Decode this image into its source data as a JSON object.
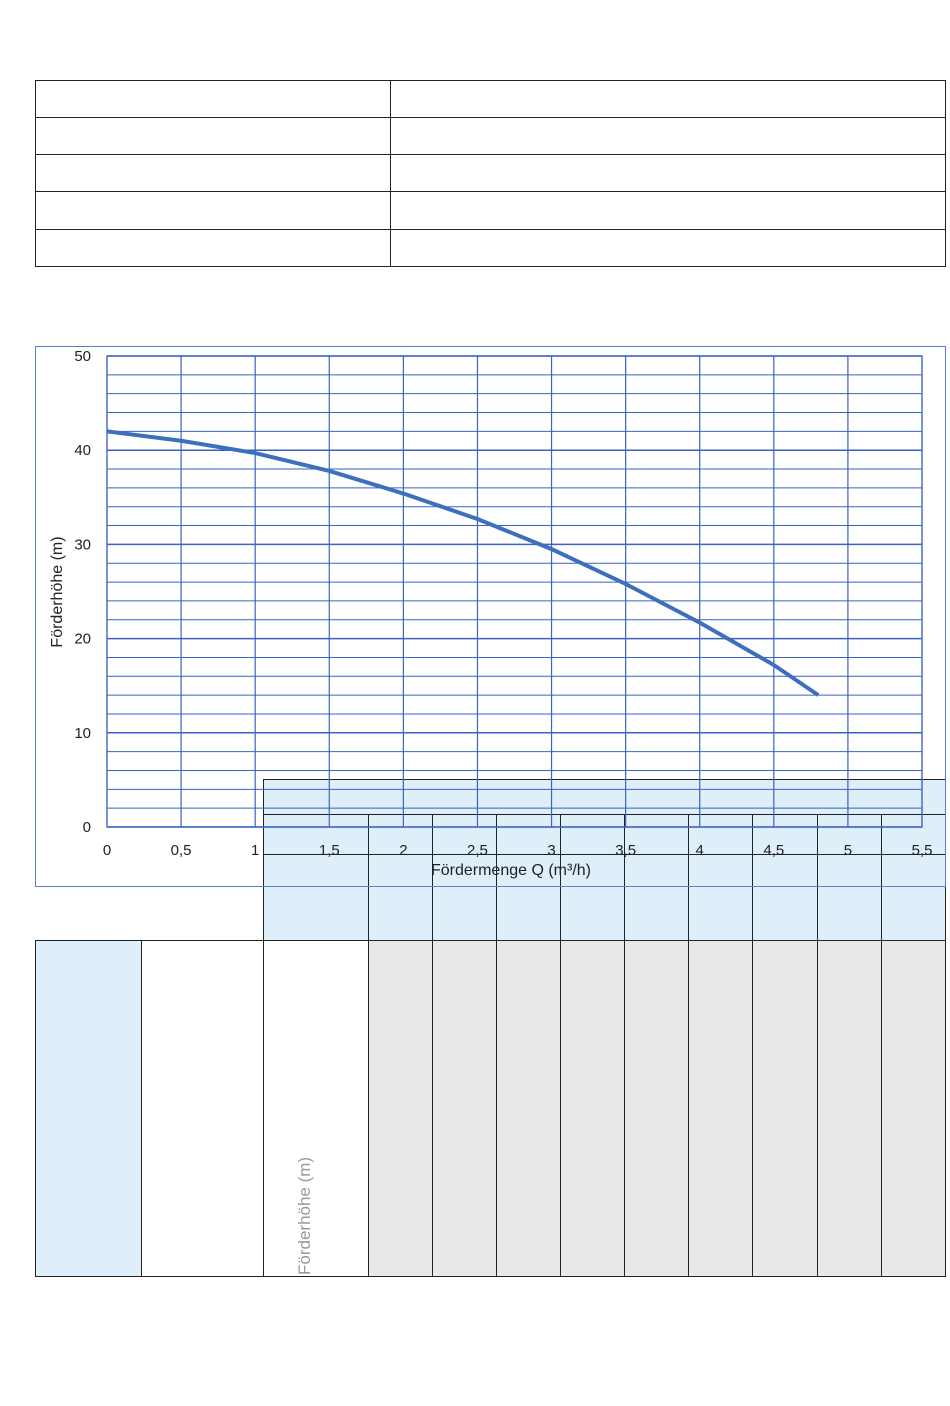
{
  "chart_data": {
    "type": "line",
    "x_label": "Fördermenge Q (m³/h)",
    "y_label": "Förderhöhe (m)",
    "x": [
      0,
      0.5,
      1,
      1.5,
      2,
      2.5,
      3,
      3.5,
      4,
      4.5,
      4.8
    ],
    "values": [
      42,
      41,
      39.7,
      37.8,
      35.4,
      32.7,
      29.5,
      25.8,
      21.7,
      17.2,
      14
    ],
    "color": "#3d6fbf",
    "xlim": [
      0,
      5.5
    ],
    "ylim": [
      0,
      50
    ],
    "xticks": [
      0,
      {
        "value": 0.5,
        "label": "0,5"
      },
      1,
      {
        "value": 1.5,
        "label": "1,5"
      },
      2,
      {
        "value": 2.5,
        "label": "2,5"
      },
      3,
      {
        "value": 3.5,
        "label": "3,5"
      },
      4,
      {
        "value": 4.5,
        "label": "4,5"
      },
      5,
      {
        "value": 5.5,
        "label": "5,5"
      }
    ],
    "yticks": [
      0,
      10,
      20,
      30,
      40,
      50
    ],
    "y_minor_grid": [
      2,
      4,
      6,
      8,
      12,
      14,
      16,
      18,
      22,
      24,
      26,
      28,
      32,
      34,
      36,
      38,
      42,
      44,
      46,
      48
    ],
    "grid": true
  },
  "lower_table": {
    "row_label": "Förderhöhe (m)"
  }
}
